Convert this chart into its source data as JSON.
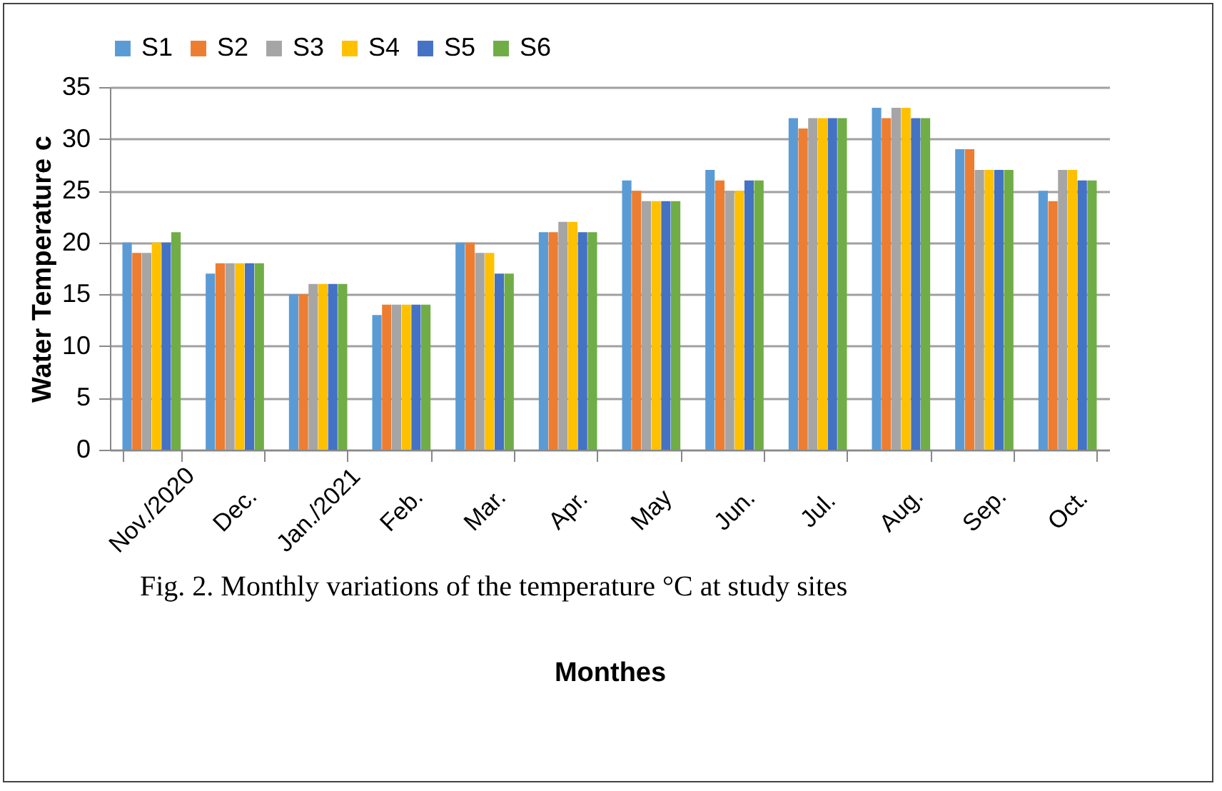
{
  "chart_data": {
    "type": "bar",
    "xlabel": "Monthes",
    "ylabel": "Water Temperature c",
    "annotations": [
      "Fig. 2. Monthly variations of the temperature °C at study sites"
    ],
    "categories": [
      "Nov./2020",
      "Dec.",
      "Jan./2021",
      "Feb.",
      "Mar.",
      "Apr.",
      "May",
      "Jun.",
      "Jul.",
      "Aug.",
      "Sep.",
      "Oct."
    ],
    "series": [
      {
        "name": "S1",
        "color": "#5b9bd5",
        "values": [
          20,
          17,
          15,
          13,
          20,
          21,
          26,
          27,
          32,
          33,
          29,
          25
        ]
      },
      {
        "name": "S2",
        "color": "#ed7d31",
        "values": [
          19,
          18,
          15,
          14,
          20,
          21,
          25,
          26,
          31,
          32,
          29,
          24
        ]
      },
      {
        "name": "S3",
        "color": "#a5a5a5",
        "values": [
          19,
          18,
          16,
          14,
          19,
          22,
          24,
          25,
          32,
          33,
          27,
          27
        ]
      },
      {
        "name": "S4",
        "color": "#ffc000",
        "values": [
          20,
          18,
          16,
          14,
          19,
          22,
          24,
          25,
          32,
          33,
          27,
          27
        ]
      },
      {
        "name": "S5",
        "color": "#4472c4",
        "values": [
          20,
          18,
          16,
          14,
          17,
          21,
          24,
          26,
          32,
          32,
          27,
          26
        ]
      },
      {
        "name": "S6",
        "color": "#70ad47",
        "values": [
          21,
          18,
          16,
          14,
          17,
          21,
          24,
          26,
          32,
          32,
          27,
          26
        ]
      }
    ],
    "ylim": [
      0,
      35
    ],
    "yticks": [
      0,
      5,
      10,
      15,
      20,
      25,
      30,
      35
    ],
    "grid": "y",
    "legend": "top"
  }
}
